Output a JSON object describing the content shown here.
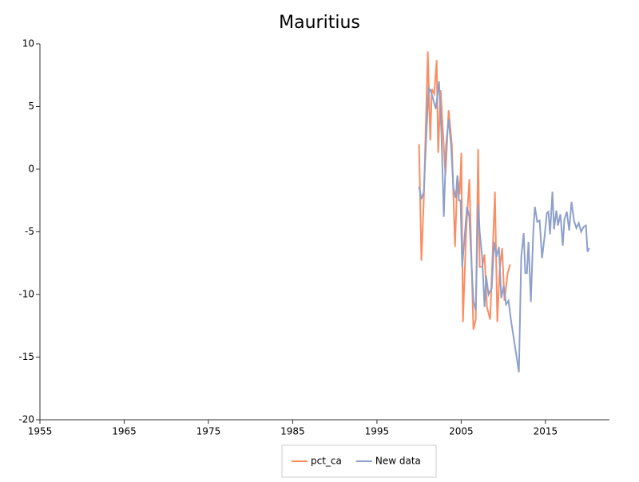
{
  "chart_data": {
    "type": "line",
    "title": "Mauritius",
    "xlim": [
      1955,
      2022.6
    ],
    "xticks": [
      1955,
      1965,
      1975,
      1985,
      1995,
      2005,
      2015
    ],
    "ylim": [
      -20,
      10
    ],
    "yticks": [
      -20,
      -15,
      -10,
      -5,
      0,
      5,
      10
    ],
    "legend": "bottom",
    "series": [
      {
        "name": "pct_ca",
        "color": "#fc8d62",
        "x": [
          2000.0,
          2000.28,
          2000.57,
          2001.04,
          2001.33,
          2001.52,
          2001.8,
          2002.09,
          2002.27,
          2002.56,
          2002.84,
          2003.13,
          2003.51,
          2003.89,
          2004.27,
          2004.55,
          2004.83,
          2005.02,
          2005.21,
          2005.59,
          2005.97,
          2006.45,
          2006.73,
          2007.01,
          2007.2,
          2007.49,
          2007.77,
          2008.06,
          2008.44,
          2009.01,
          2009.29,
          2009.57,
          2009.86,
          2010.14,
          2010.52,
          2010.81
        ],
        "values": [
          2.0,
          -7.3,
          -2.3,
          9.4,
          2.3,
          6.4,
          6.0,
          8.7,
          1.3,
          6.3,
          3.0,
          -0.5,
          4.7,
          2.0,
          -6.2,
          -0.5,
          -2.0,
          1.3,
          -12.2,
          -5.0,
          -0.8,
          -12.8,
          -12.0,
          1.6,
          -7.8,
          -7.8,
          -6.8,
          -11.0,
          -12.0,
          -1.8,
          -12.2,
          -8.0,
          -6.3,
          -10.5,
          -8.3,
          -7.6
        ]
      },
      {
        "name": "New data",
        "color": "#8da0cb",
        "x": [
          2000.0,
          2000.28,
          2000.57,
          2000.85,
          2001.14,
          2001.42,
          2001.71,
          2001.99,
          2002.37,
          2002.65,
          2002.94,
          2003.22,
          2003.51,
          2003.79,
          2004.08,
          2004.36,
          2004.55,
          2004.74,
          2004.93,
          2005.12,
          2005.4,
          2005.69,
          2005.97,
          2006.26,
          2006.45,
          2006.73,
          2007.01,
          2007.2,
          2007.49,
          2007.77,
          2007.96,
          2008.25,
          2008.63,
          2008.91,
          2009.19,
          2009.48,
          2009.76,
          2010.05,
          2010.33,
          2010.62,
          2010.9,
          2011.47,
          2011.85,
          2012.13,
          2012.42,
          2012.61,
          2012.8,
          2012.99,
          2013.27,
          2013.56,
          2013.75,
          2014.03,
          2014.31,
          2014.6,
          2014.88,
          2015.17,
          2015.36,
          2015.55,
          2015.83,
          2016.02,
          2016.3,
          2016.49,
          2016.78,
          2017.06,
          2017.25,
          2017.54,
          2017.82,
          2018.1,
          2018.39,
          2018.67,
          2018.96,
          2019.24,
          2019.53,
          2019.81,
          2020.0,
          2020.19
        ],
        "values": [
          -1.4,
          -2.4,
          -1.8,
          2.5,
          6.5,
          6.2,
          5.5,
          4.8,
          7.0,
          3.0,
          -3.8,
          2.0,
          4.0,
          2.0,
          -1.5,
          -2.3,
          -0.5,
          -2.5,
          -2.5,
          -7.8,
          -5.5,
          -3.0,
          -3.8,
          -8.0,
          -10.5,
          -11.3,
          -2.8,
          -5.0,
          -7.0,
          -11.0,
          -8.5,
          -10.0,
          -9.5,
          -5.8,
          -7.0,
          -6.2,
          -10.3,
          -9.3,
          -10.8,
          -10.5,
          -12.0,
          -14.5,
          -16.2,
          -7.0,
          -5.1,
          -8.3,
          -8.3,
          -5.8,
          -10.6,
          -5.0,
          -3.0,
          -4.2,
          -4.1,
          -7.1,
          -5.5,
          -3.5,
          -3.4,
          -5.2,
          -1.8,
          -4.8,
          -3.3,
          -4.5,
          -3.6,
          -6.1,
          -4.0,
          -3.4,
          -4.9,
          -2.6,
          -4.1,
          -4.7,
          -4.3,
          -5.0,
          -4.6,
          -4.5,
          -6.6,
          -6.3
        ]
      }
    ]
  }
}
